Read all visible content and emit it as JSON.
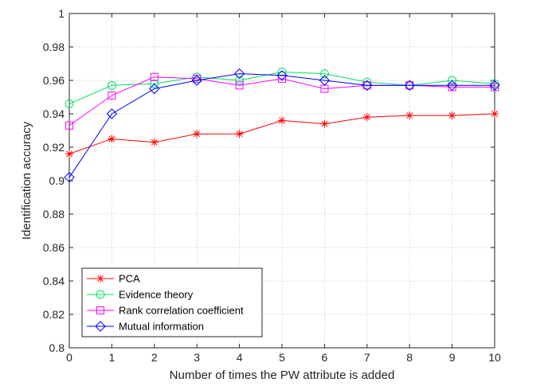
{
  "chart_data": {
    "type": "line",
    "title": "",
    "xlabel": "Number of times the PW attribute is added",
    "ylabel": "Identification accuracy",
    "x": [
      0,
      1,
      2,
      3,
      4,
      5,
      6,
      7,
      8,
      9,
      10
    ],
    "xlim": [
      0,
      10
    ],
    "ylim": [
      0.8,
      1.0
    ],
    "xticks": [
      0,
      1,
      2,
      3,
      4,
      5,
      6,
      7,
      8,
      9,
      10
    ],
    "yticks": [
      0.8,
      0.82,
      0.84,
      0.86,
      0.88,
      0.9,
      0.92,
      0.94,
      0.96,
      0.98,
      1
    ],
    "xtick_labels": [
      "0",
      "1",
      "2",
      "3",
      "4",
      "5",
      "6",
      "7",
      "8",
      "9",
      "10"
    ],
    "ytick_labels": [
      "0.8",
      "0.82",
      "0.84",
      "0.86",
      "0.88",
      "0.9",
      "0.92",
      "0.94",
      "0.96",
      "0.98",
      "1"
    ],
    "grid": true,
    "legend_position": "bottom-left",
    "series": [
      {
        "name": "PCA",
        "color": "#ff0000",
        "marker": "asterisk",
        "values": [
          0.916,
          0.925,
          0.923,
          0.928,
          0.928,
          0.936,
          0.934,
          0.938,
          0.939,
          0.939,
          0.94
        ]
      },
      {
        "name": "Evidence theory",
        "color": "#00e060",
        "marker": "circle",
        "values": [
          0.946,
          0.957,
          0.958,
          0.962,
          0.96,
          0.965,
          0.964,
          0.959,
          0.957,
          0.96,
          0.958
        ]
      },
      {
        "name": "Rank correlation coefficient",
        "color": "#ff00ff",
        "marker": "square",
        "values": [
          0.933,
          0.951,
          0.962,
          0.961,
          0.957,
          0.961,
          0.955,
          0.957,
          0.957,
          0.956,
          0.956
        ]
      },
      {
        "name": "Mutual information",
        "color": "#0000ff",
        "marker": "diamond",
        "values": [
          0.902,
          0.94,
          0.955,
          0.96,
          0.964,
          0.963,
          0.96,
          0.957,
          0.957,
          0.957,
          0.957
        ]
      }
    ]
  }
}
